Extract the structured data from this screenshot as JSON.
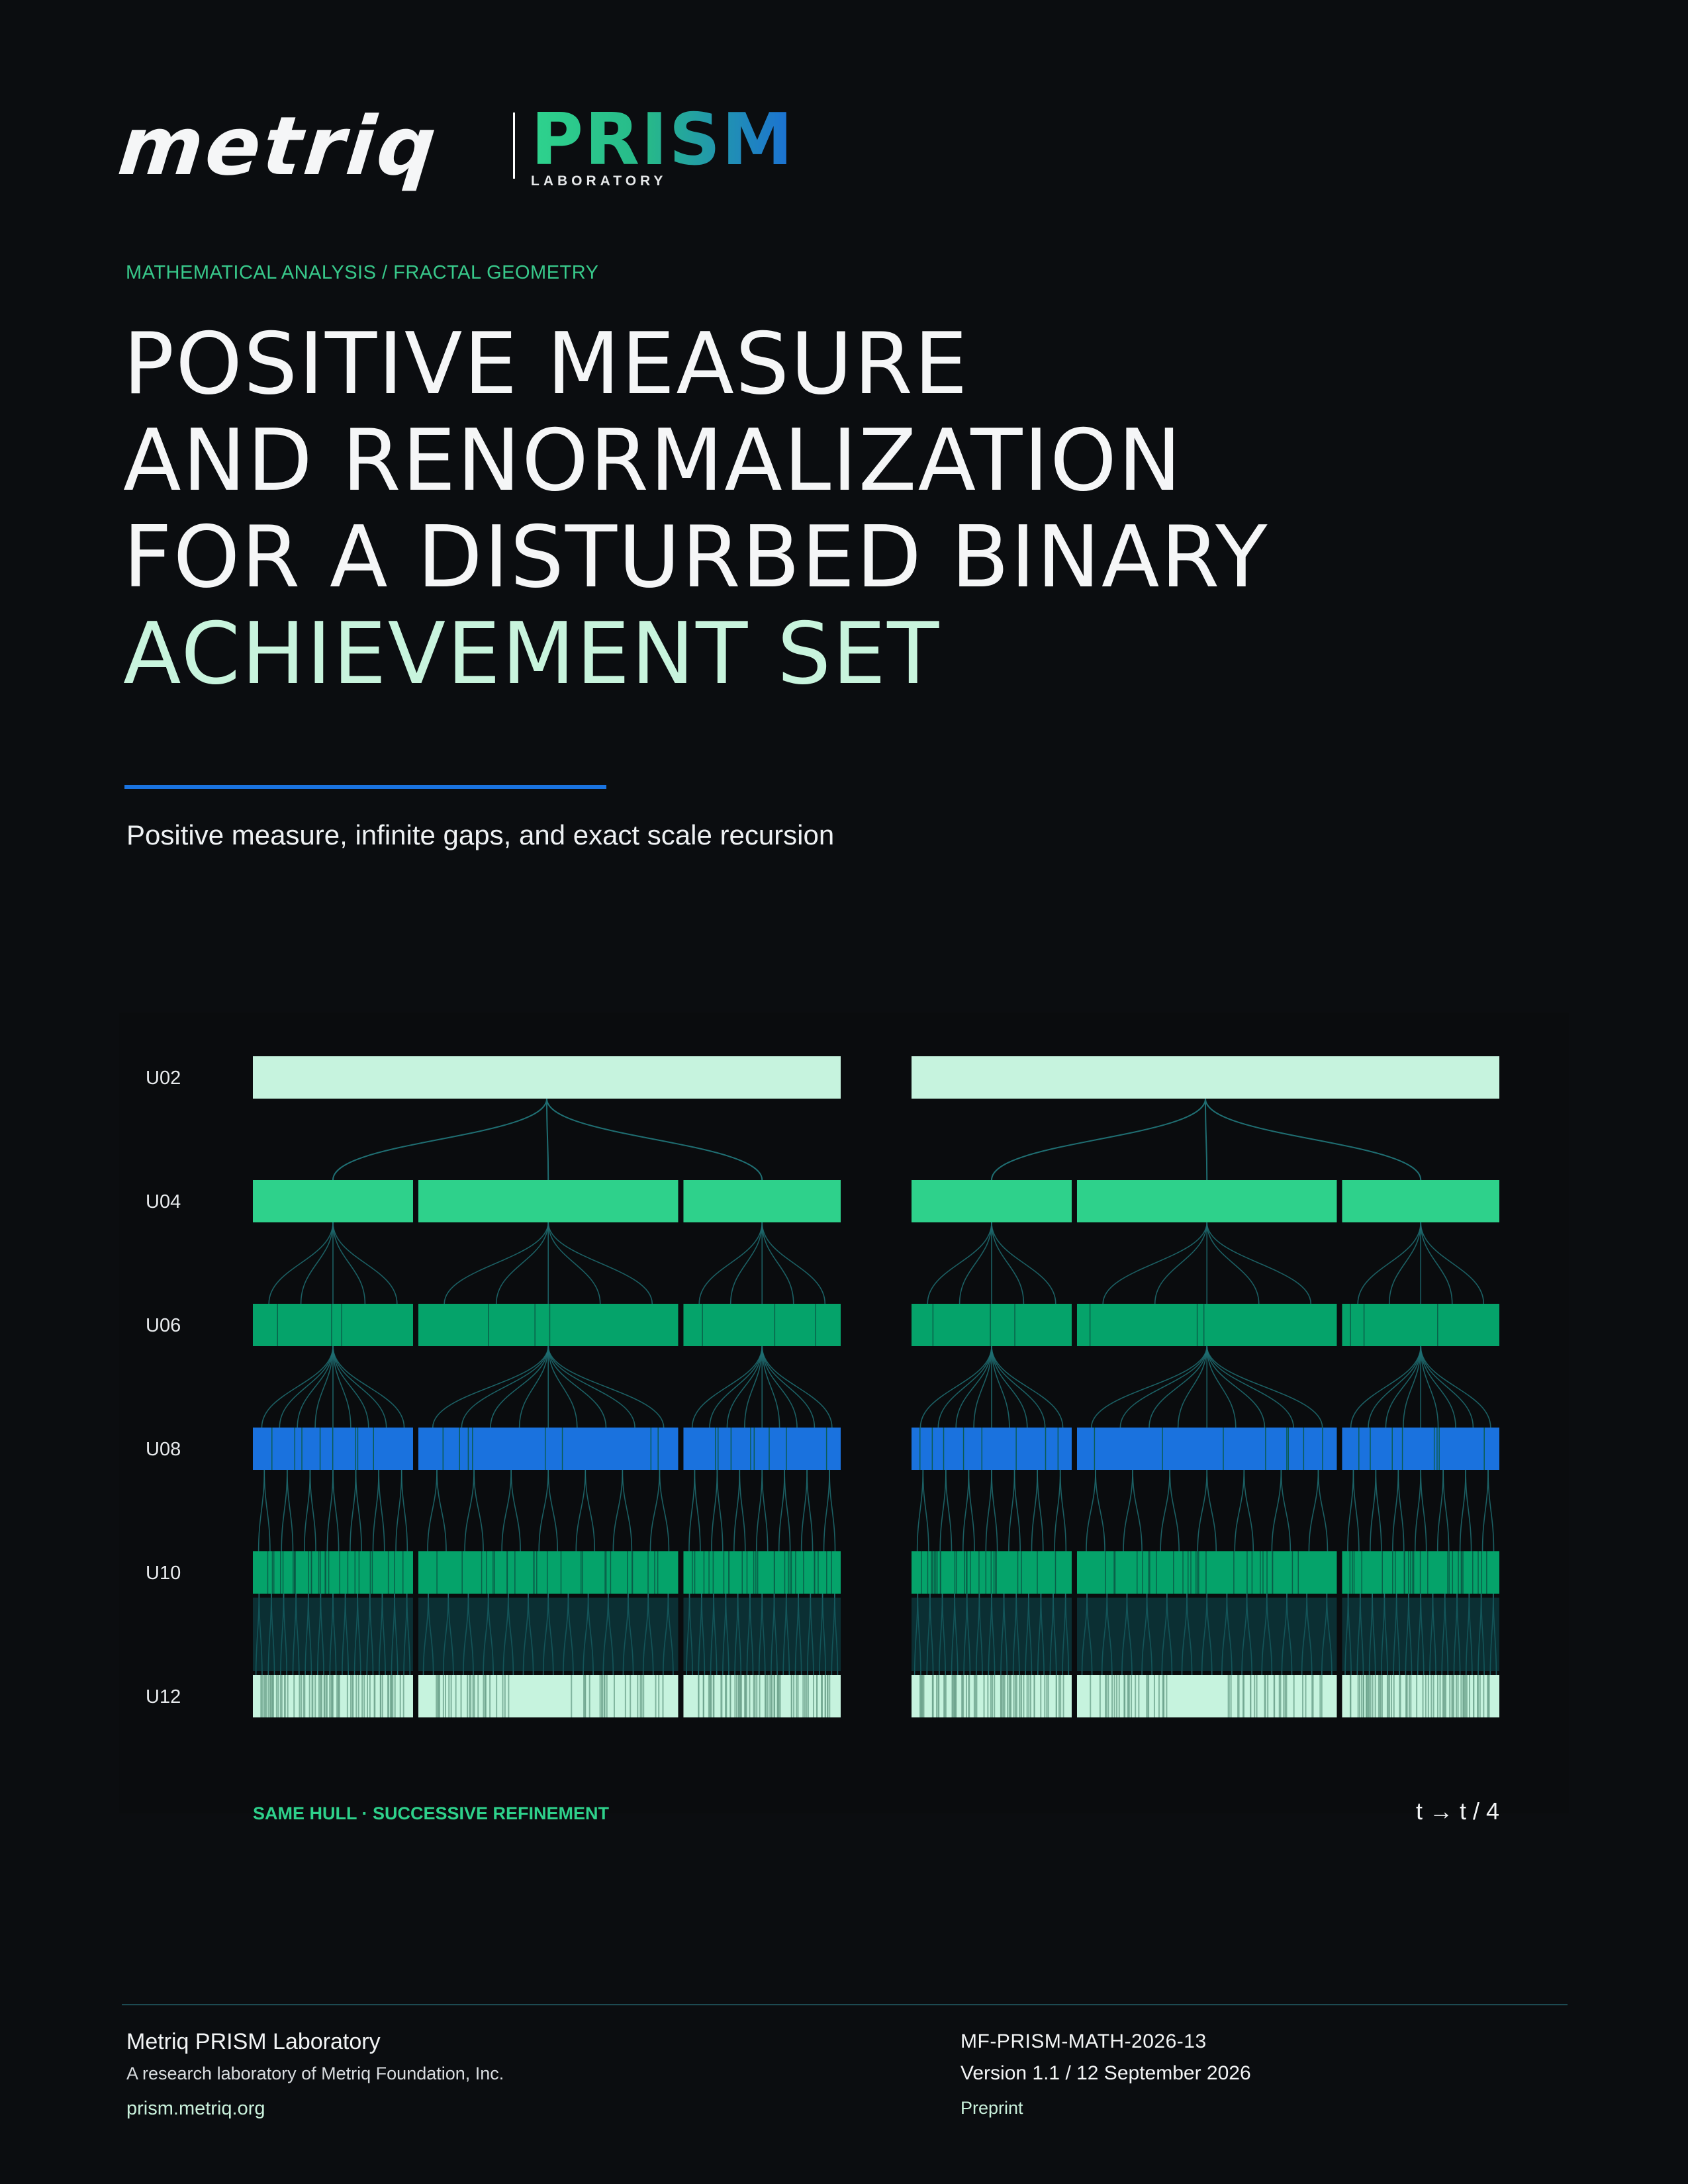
{
  "brand": {
    "primary": "metriq",
    "secondary": "PRISM",
    "secondary_sub": "LABORATORY"
  },
  "eyebrow": "MATHEMATICAL ANALYSIS / FRACTAL GEOMETRY",
  "title": {
    "line1": "POSITIVE MEASURE",
    "line2": "AND RENORMALIZATION",
    "line3": "FOR A DISTURBED BINARY",
    "line4": "ACHIEVEMENT SET"
  },
  "subtitle": "Positive measure, infinite gaps, and exact scale recursion",
  "figure": {
    "levels": [
      {
        "label": "U02",
        "color": "#c6f3de"
      },
      {
        "label": "U04",
        "color": "#2ed18b"
      },
      {
        "label": "U06",
        "color": "#05a36a"
      },
      {
        "label": "U08",
        "color": "#1a72de"
      },
      {
        "label": "U10",
        "color": "#05a36a"
      },
      {
        "label": "U12",
        "color": "#c6f3de"
      }
    ],
    "caption_left": "SAME HULL · SUCCESSIVE REFINEMENT",
    "caption_right": "t → t / 4",
    "connector_color": "#1f6e72",
    "accent_green": "#2ed18b"
  },
  "footer": {
    "org": "Metriq PRISM Laboratory",
    "org_desc": "A research laboratory of Metriq Foundation, Inc.",
    "url": "prism.metriq.org",
    "doc_id": "MF-PRISM-MATH-2026-13",
    "version": "Version 1.1 / 12 September 2026",
    "status": "Preprint"
  }
}
